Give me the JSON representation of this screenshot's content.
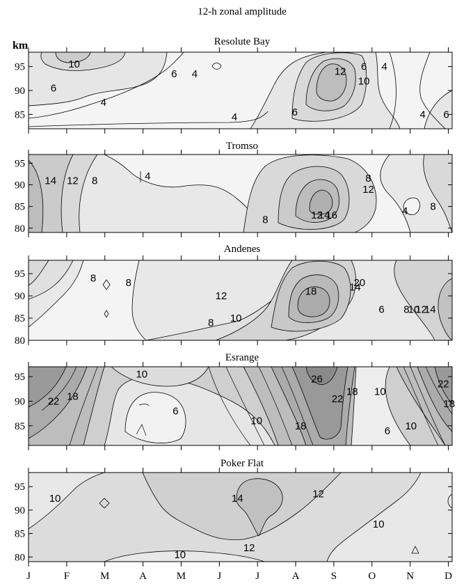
{
  "figure": {
    "title": "12-h zonal amplitude",
    "unit_label": "km"
  },
  "months": [
    "J",
    "F",
    "M",
    "A",
    "M",
    "J",
    "J",
    "A",
    "S",
    "O",
    "N",
    "D"
  ],
  "chart_data": [
    {
      "type": "contour",
      "title": "Resolute Bay",
      "ylabel": "km",
      "ylim": [
        82,
        98
      ],
      "yticks": [
        85,
        90,
        95
      ],
      "xticks": [
        "J",
        "F",
        "M",
        "A",
        "M",
        "J",
        "J",
        "A",
        "S",
        "O",
        "N",
        "D"
      ],
      "contour_levels": [
        4,
        6,
        8,
        10,
        12
      ],
      "contour_labels": [
        {
          "text": "10",
          "month": 1.55,
          "km": 95.5
        },
        {
          "text": "6",
          "month": 0.85,
          "km": 90.5
        },
        {
          "text": "4",
          "month": 2.55,
          "km": 87.5
        },
        {
          "text": "6",
          "month": 4.95,
          "km": 93.5
        },
        {
          "text": "4",
          "month": 5.65,
          "km": 93.5
        },
        {
          "text": "4",
          "month": 7.0,
          "km": 84.5
        },
        {
          "text": "6",
          "month": 9.05,
          "km": 85.5
        },
        {
          "text": "12",
          "month": 10.6,
          "km": 94.0
        },
        {
          "text": "10",
          "month": 11.4,
          "km": 92.0
        },
        {
          "text": "6",
          "month": 11.4,
          "km": 95.0
        },
        {
          "text": "4",
          "month": 12.1,
          "km": 95.0
        },
        {
          "text": "4",
          "month": 13.4,
          "km": 85.0
        },
        {
          "text": "6",
          "month": 14.2,
          "km": 85.0
        }
      ]
    },
    {
      "type": "contour",
      "title": "Tromso",
      "ylabel": "km",
      "ylim": [
        79,
        97
      ],
      "yticks": [
        80,
        85,
        90,
        95
      ],
      "xticks": [
        "J",
        "F",
        "M",
        "A",
        "M",
        "J",
        "J",
        "A",
        "S",
        "O",
        "N",
        "D"
      ],
      "contour_levels": [
        4,
        8,
        12,
        14,
        16
      ],
      "contour_labels": [
        {
          "text": "14",
          "month": 0.75,
          "km": 91.0
        },
        {
          "text": "12",
          "month": 1.5,
          "km": 91.0
        },
        {
          "text": "8",
          "month": 2.25,
          "km": 91.0
        },
        {
          "text": "4",
          "month": 4.05,
          "km": 92.0
        },
        {
          "text": "8",
          "month": 8.05,
          "km": 82.0
        },
        {
          "text": "12",
          "month": 9.8,
          "km": 83.0
        },
        {
          "text": "14",
          "month": 10.05,
          "km": 83.0
        },
        {
          "text": "16",
          "month": 10.3,
          "km": 83.0
        },
        {
          "text": "8",
          "month": 11.55,
          "km": 91.5
        },
        {
          "text": "12",
          "month": 11.55,
          "km": 89.0
        },
        {
          "text": "4",
          "month": 12.8,
          "km": 84.0
        },
        {
          "text": "8",
          "month": 13.75,
          "km": 85.0
        }
      ]
    },
    {
      "type": "contour",
      "title": "Andenes",
      "ylabel": "km",
      "ylim": [
        80,
        98
      ],
      "yticks": [
        80,
        85,
        90,
        95
      ],
      "xticks": [
        "J",
        "F",
        "M",
        "A",
        "M",
        "J",
        "J",
        "A",
        "S",
        "O",
        "N",
        "D"
      ],
      "contour_levels": [
        6,
        8,
        10,
        12,
        14,
        16,
        18,
        20
      ],
      "contour_labels": [
        {
          "text": "8",
          "month": 2.2,
          "km": 94.0
        },
        {
          "text": "8",
          "month": 3.4,
          "km": 93.0
        },
        {
          "text": "12",
          "month": 6.55,
          "km": 90.0
        },
        {
          "text": "8",
          "month": 6.2,
          "km": 84.0
        },
        {
          "text": "10",
          "month": 7.05,
          "km": 85.0
        },
        {
          "text": "18",
          "month": 9.6,
          "km": 91.0
        },
        {
          "text": "14",
          "month": 11.1,
          "km": 92.0
        },
        {
          "text": "20",
          "month": 11.25,
          "km": 93.0
        },
        {
          "text": "6",
          "month": 12.0,
          "km": 87.0
        },
        {
          "text": "8",
          "month": 12.85,
          "km": 87.0
        },
        {
          "text": "10",
          "month": 13.1,
          "km": 87.0
        },
        {
          "text": "12",
          "month": 13.35,
          "km": 87.0
        },
        {
          "text": "14",
          "month": 13.65,
          "km": 87.0
        }
      ]
    },
    {
      "type": "contour",
      "title": "Esrange",
      "ylabel": "km",
      "ylim": [
        81,
        97
      ],
      "yticks": [
        85,
        90,
        95
      ],
      "xticks": [
        "J",
        "F",
        "M",
        "A",
        "M",
        "J",
        "J",
        "A",
        "S",
        "O",
        "N",
        "D"
      ],
      "contour_levels": [
        6,
        10,
        14,
        18,
        22,
        26
      ],
      "contour_labels": [
        {
          "text": "22",
          "month": 0.85,
          "km": 90.0
        },
        {
          "text": "18",
          "month": 1.5,
          "km": 91.0
        },
        {
          "text": "10",
          "month": 3.85,
          "km": 95.5
        },
        {
          "text": "6",
          "month": 5.0,
          "km": 88.0
        },
        {
          "text": "10",
          "month": 7.75,
          "km": 86.0
        },
        {
          "text": "18",
          "month": 9.25,
          "km": 85.0
        },
        {
          "text": "26",
          "month": 9.8,
          "km": 94.5
        },
        {
          "text": "22",
          "month": 10.5,
          "km": 90.5
        },
        {
          "text": "18",
          "month": 11.0,
          "km": 92.0
        },
        {
          "text": "10",
          "month": 11.95,
          "km": 92.0
        },
        {
          "text": "6",
          "month": 12.2,
          "km": 84.0
        },
        {
          "text": "10",
          "month": 13.0,
          "km": 85.0
        },
        {
          "text": "22",
          "month": 14.1,
          "km": 93.5
        },
        {
          "text": "18",
          "month": 14.3,
          "km": 89.5
        }
      ]
    },
    {
      "type": "contour",
      "title": "Poker Flat",
      "ylabel": "km",
      "ylim": [
        79,
        98
      ],
      "yticks": [
        80,
        85,
        90,
        95
      ],
      "xticks": [
        "J",
        "F",
        "M",
        "A",
        "M",
        "J",
        "J",
        "A",
        "S",
        "O",
        "N",
        "D"
      ],
      "contour_levels": [
        10,
        12,
        14
      ],
      "contour_labels": [
        {
          "text": "10",
          "month": 0.9,
          "km": 92.5
        },
        {
          "text": "14",
          "month": 7.1,
          "km": 92.5
        },
        {
          "text": "12",
          "month": 9.85,
          "km": 93.5
        },
        {
          "text": "10",
          "month": 11.9,
          "km": 87.0
        },
        {
          "text": "12",
          "month": 7.5,
          "km": 82.0
        },
        {
          "text": "10",
          "month": 5.15,
          "km": 80.5
        }
      ]
    }
  ]
}
